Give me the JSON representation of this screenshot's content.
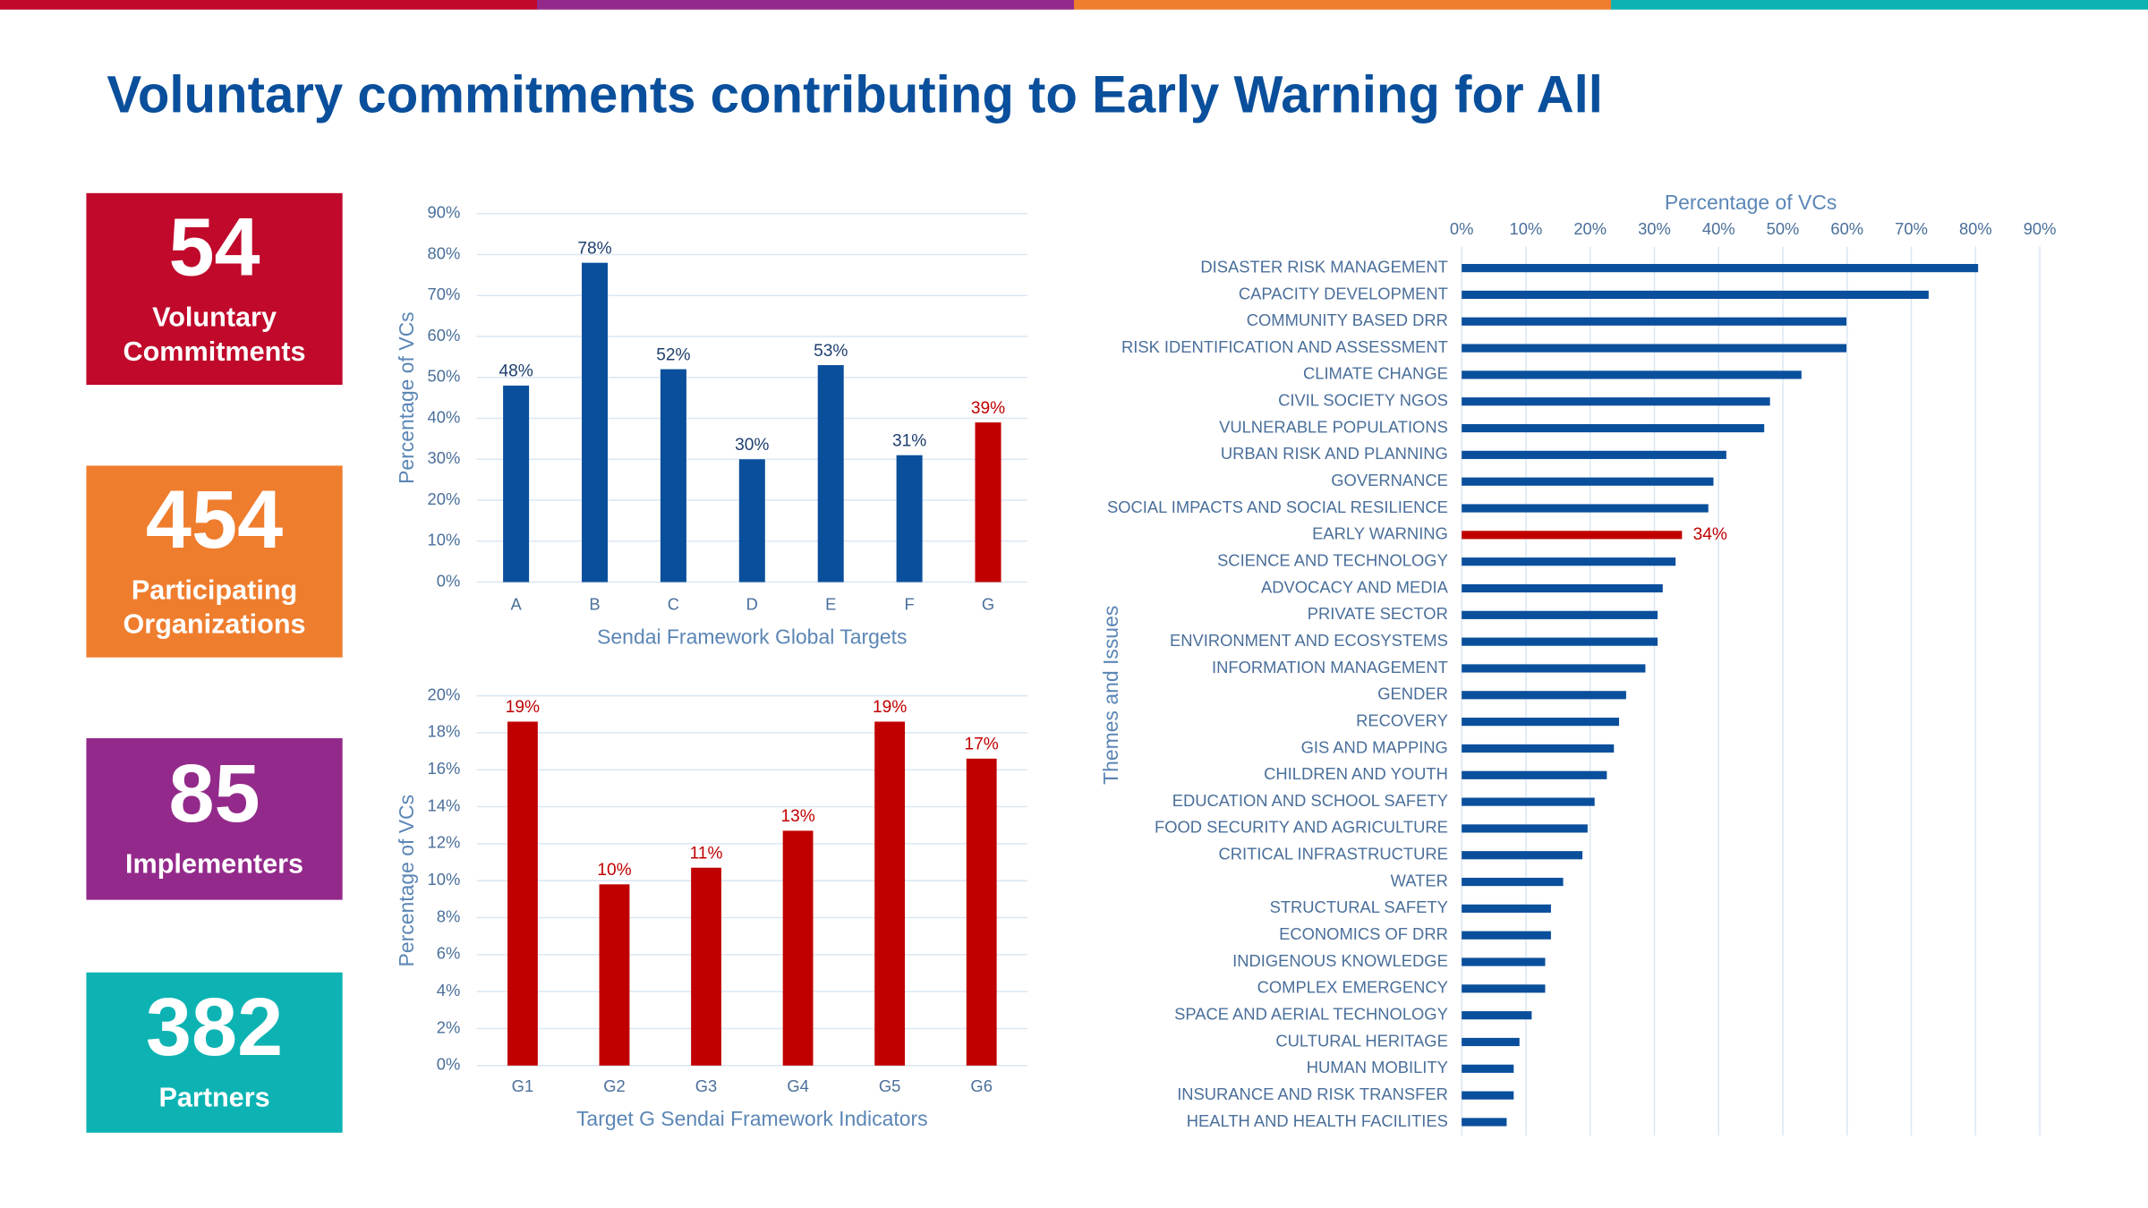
{
  "title": "Voluntary commitments contributing to Early Warning for All",
  "stats": [
    {
      "value": 54,
      "label": [
        "Voluntary",
        "Commitments"
      ],
      "color": "#c0092b"
    },
    {
      "value": 454,
      "label": [
        "Participating",
        "Organizations"
      ],
      "color": "#ef7d2e"
    },
    {
      "value": 85,
      "label": [
        "Implementers"
      ],
      "color": "#932a8b"
    },
    {
      "value": 382,
      "label": [
        "Partners"
      ],
      "color": "#0db3b3"
    }
  ],
  "chart_data": [
    {
      "type": "bar",
      "xlabel": "Sendai Framework Global Targets",
      "ylabel": "Percentage of VCs",
      "categories": [
        "A",
        "B",
        "C",
        "D",
        "E",
        "F",
        "G"
      ],
      "values": [
        48,
        78,
        52,
        30,
        53,
        31,
        39
      ],
      "value_labels": [
        "48%",
        "78%",
        "52%",
        "30%",
        "53%",
        "31%",
        "39%"
      ],
      "colors": [
        "#0a4f9c",
        "#0a4f9c",
        "#0a4f9c",
        "#0a4f9c",
        "#0a4f9c",
        "#0a4f9c",
        "#c00000"
      ],
      "ylim": [
        0,
        90
      ],
      "yticks": [
        {
          "value": 0,
          "label": "0%"
        },
        {
          "value": 10,
          "label": "10%"
        },
        {
          "value": 20,
          "label": "20%"
        },
        {
          "value": 30,
          "label": "30%"
        },
        {
          "value": 40,
          "label": "40%"
        },
        {
          "value": 50,
          "label": "50%"
        },
        {
          "value": 60,
          "label": "60%"
        },
        {
          "value": 70,
          "label": "70%"
        },
        {
          "value": 80,
          "label": "80%"
        },
        {
          "value": 90,
          "label": "90%"
        }
      ],
      "grid": true
    },
    {
      "type": "bar",
      "xlabel": "Target G Sendai Framework Indicators",
      "ylabel": "Percentage of VCs",
      "categories": [
        "G1",
        "G2",
        "G3",
        "G4",
        "G5",
        "G6"
      ],
      "values": [
        18.6,
        9.8,
        10.7,
        12.7,
        18.6,
        16.6
      ],
      "value_labels": [
        "19%",
        "10%",
        "11%",
        "13%",
        "19%",
        "17%"
      ],
      "colors": [
        "#c00000",
        "#c00000",
        "#c00000",
        "#c00000",
        "#c00000",
        "#c00000"
      ],
      "ylim": [
        0,
        20
      ],
      "yticks": [
        {
          "value": 0,
          "label": "0%"
        },
        {
          "value": 2,
          "label": "2%"
        },
        {
          "value": 4,
          "label": "4%"
        },
        {
          "value": 6,
          "label": "6%"
        },
        {
          "value": 8,
          "label": "8%"
        },
        {
          "value": 10,
          "label": "10%"
        },
        {
          "value": 12,
          "label": "12%"
        },
        {
          "value": 14,
          "label": "14%"
        },
        {
          "value": 16,
          "label": "16%"
        },
        {
          "value": 18,
          "label": "18%"
        },
        {
          "value": 20,
          "label": "20%"
        }
      ],
      "grid": true
    },
    {
      "type": "barh",
      "xlabel": "Percentage of VCs",
      "ylabel": "Themes and Issues",
      "categories": [
        "DISASTER RISK MANAGEMENT",
        "CAPACITY DEVELOPMENT",
        "COMMUNITY BASED DRR",
        "RISK IDENTIFICATION AND ASSESSMENT",
        "CLIMATE CHANGE",
        "CIVIL SOCIETY NGOS",
        "VULNERABLE POPULATIONS",
        "URBAN RISK AND PLANNING",
        "GOVERNANCE",
        "SOCIAL IMPACTS AND SOCIAL RESILIENCE",
        "EARLY WARNING",
        "SCIENCE AND TECHNOLOGY",
        "ADVOCACY AND MEDIA",
        "PRIVATE SECTOR",
        "ENVIRONMENT AND ECOSYSTEMS",
        "INFORMATION MANAGEMENT",
        "GENDER",
        "RECOVERY",
        "GIS AND MAPPING",
        "CHILDREN AND YOUTH",
        "EDUCATION AND SCHOOL SAFETY",
        "FOOD SECURITY AND AGRICULTURE",
        "CRITICAL INFRASTRUCTURE",
        "WATER",
        "STRUCTURAL SAFETY",
        "ECONOMICS OF DRR",
        "INDIGENOUS KNOWLEDGE",
        "COMPLEX EMERGENCY",
        "SPACE AND AERIAL TECHNOLOGY",
        "CULTURAL HERITAGE",
        "HUMAN MOBILITY",
        "INSURANCE AND RISK TRANSFER",
        "HEALTH AND HEALTH FACILITIES"
      ],
      "values": [
        80.4,
        72.7,
        59.9,
        59.9,
        52.9,
        48.0,
        47.1,
        41.2,
        39.2,
        38.4,
        34.3,
        33.3,
        31.3,
        30.5,
        30.5,
        28.6,
        25.6,
        24.5,
        23.7,
        22.6,
        20.7,
        19.6,
        18.8,
        15.8,
        13.9,
        13.9,
        13.0,
        13.0,
        10.9,
        9.0,
        8.1,
        8.1,
        7.0
      ],
      "value_labels": [
        null,
        null,
        null,
        null,
        null,
        null,
        null,
        null,
        null,
        null,
        "34%",
        null,
        null,
        null,
        null,
        null,
        null,
        null,
        null,
        null,
        null,
        null,
        null,
        null,
        null,
        null,
        null,
        null,
        null,
        null,
        null,
        null,
        null
      ],
      "colors": [
        "#0a4f9c",
        "#0a4f9c",
        "#0a4f9c",
        "#0a4f9c",
        "#0a4f9c",
        "#0a4f9c",
        "#0a4f9c",
        "#0a4f9c",
        "#0a4f9c",
        "#0a4f9c",
        "#c00000",
        "#0a4f9c",
        "#0a4f9c",
        "#0a4f9c",
        "#0a4f9c",
        "#0a4f9c",
        "#0a4f9c",
        "#0a4f9c",
        "#0a4f9c",
        "#0a4f9c",
        "#0a4f9c",
        "#0a4f9c",
        "#0a4f9c",
        "#0a4f9c",
        "#0a4f9c",
        "#0a4f9c",
        "#0a4f9c",
        "#0a4f9c",
        "#0a4f9c",
        "#0a4f9c",
        "#0a4f9c",
        "#0a4f9c",
        "#0a4f9c"
      ],
      "xlim": [
        0,
        90
      ],
      "xticks": [
        {
          "value": 0,
          "label": "0%"
        },
        {
          "value": 10,
          "label": "10%"
        },
        {
          "value": 20,
          "label": "20%"
        },
        {
          "value": 30,
          "label": "30%"
        },
        {
          "value": 40,
          "label": "40%"
        },
        {
          "value": 50,
          "label": "50%"
        },
        {
          "value": 60,
          "label": "60%"
        },
        {
          "value": 70,
          "label": "70%"
        },
        {
          "value": 80,
          "label": "80%"
        },
        {
          "value": 90,
          "label": "90%"
        }
      ],
      "grid": true
    }
  ]
}
